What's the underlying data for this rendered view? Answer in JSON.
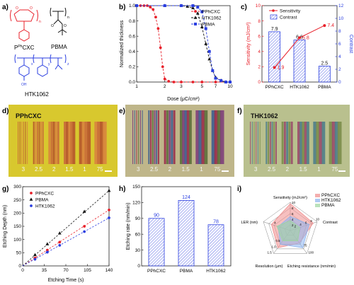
{
  "panels": {
    "a": {
      "label": "a)",
      "molecules": [
        "P^PhCXC",
        "PBMA",
        "HTK1062"
      ],
      "mol_text": {
        "o": "O",
        "oh": "OH",
        "n": "n",
        "x": "x",
        "y": "y",
        "z": "z",
        "pph": "P",
        "pph_sup": "Ph",
        "pph_rest": "CXC"
      }
    },
    "b": {
      "label": "b)",
      "chart_data": {
        "type": "line",
        "xlabel": "Dose (μC/cm²)",
        "ylabel": "Normalized thickness",
        "xscale": "log",
        "xlim": [
          1,
          10
        ],
        "ylim": [
          0.0,
          1.0
        ],
        "xticks": [
          "1",
          "2",
          "3",
          "5",
          "7",
          "10"
        ],
        "yticks": [
          "0.0",
          "0.2",
          "0.4",
          "0.6",
          "0.8",
          "1.0"
        ],
        "legend": "top-right",
        "series": [
          {
            "name": "PPhCXC",
            "color": "#e8202a",
            "marker": "circle",
            "x": [
              1.0,
              1.1,
              1.2,
              1.3,
              1.4,
              1.5,
              1.6,
              1.7,
              1.8,
              1.9,
              2.0,
              2.2,
              2.5,
              3.0,
              4.0,
              5.0,
              7.0,
              10.0
            ],
            "y": [
              1.0,
              1.0,
              1.0,
              1.0,
              0.98,
              0.95,
              0.85,
              0.7,
              0.45,
              0.2,
              0.04,
              0.01,
              0.0,
              0.0,
              0.0,
              0.0,
              0.0,
              0.0
            ]
          },
          {
            "name": "HTK1062",
            "color": "#111111",
            "marker": "triangle",
            "x": [
              1.0,
              2.0,
              3.0,
              3.5,
              4.0,
              4.5,
              5.0,
              5.5,
              6.0,
              6.5,
              7.0,
              8.0,
              9.0,
              10.0
            ],
            "y": [
              1.0,
              1.0,
              1.0,
              0.99,
              0.97,
              0.9,
              0.72,
              0.5,
              0.3,
              0.15,
              0.06,
              0.02,
              0.0,
              0.0
            ]
          },
          {
            "name": "PBMA",
            "color": "#2a3ee0",
            "marker": "square",
            "x": [
              1.0,
              2.0,
              3.0,
              4.0,
              4.5,
              5.0,
              5.5,
              6.0,
              6.5,
              7.0,
              8.0,
              9.0,
              10.0
            ],
            "y": [
              1.0,
              1.0,
              1.0,
              1.0,
              0.98,
              0.92,
              0.7,
              0.4,
              0.15,
              0.05,
              0.02,
              0.0,
              0.0
            ]
          }
        ]
      }
    },
    "c": {
      "label": "c)",
      "chart_data": {
        "type": "bar",
        "categories": [
          "PPhCXC",
          "HTK1062",
          "PBMA"
        ],
        "ylabel_left": "Sensitivity (mJ/cm²)",
        "ylabel_right": "Contrast",
        "ylim_left": [
          0,
          10
        ],
        "ylim_right": [
          0,
          12
        ],
        "yticks_left": [
          "0",
          "2",
          "4",
          "6",
          "8",
          "10"
        ],
        "yticks_right": [
          "0",
          "2",
          "4",
          "6",
          "8",
          "10",
          "12"
        ],
        "series": [
          {
            "name": "Sensitivity",
            "type": "line",
            "axis": "left",
            "color": "#e8202a",
            "values": [
              1.9,
              5.8,
              7.4
            ]
          },
          {
            "name": "Contrast",
            "type": "bar",
            "axis": "right",
            "color": "#2a3ee0",
            "values": [
              7.9,
              6.6,
              2.5
            ]
          }
        ],
        "value_labels_sens": [
          "1.9",
          "5.8",
          "7.4"
        ],
        "value_labels_contrast": [
          "7.9",
          "6.6",
          "2.5"
        ]
      }
    },
    "d": {
      "label": "d)",
      "title": "PPhCXC",
      "dose_labels": [
        "3",
        "2.5",
        "2",
        "1.5",
        "1",
        "75"
      ]
    },
    "e": {
      "label": "e)",
      "dose_labels": [
        "3",
        "2.5",
        "2",
        "1.5",
        "1",
        "75"
      ]
    },
    "f": {
      "label": "f)",
      "title": "THK1062",
      "dose_labels": [
        "3",
        "2.5",
        "2",
        "1.5",
        "1",
        "75"
      ]
    },
    "g": {
      "label": "g)",
      "chart_data": {
        "type": "scatter",
        "xlabel": "Etching Time (s)",
        "ylabel": "Etching Depth (nm)",
        "xlim": [
          0,
          140
        ],
        "ylim": [
          0,
          300
        ],
        "xticks": [
          "0",
          "35",
          "70",
          "105",
          "140"
        ],
        "yticks": [
          "0",
          "50",
          "100",
          "150",
          "200",
          "250",
          "300"
        ],
        "legend": "top-left",
        "series": [
          {
            "name": "PPhCXC",
            "color": "#e8202a",
            "marker": "circle",
            "x": [
              20,
              40,
              60,
              100,
              140
            ],
            "y": [
              30,
              60,
              90,
              150,
              212
            ]
          },
          {
            "name": "PBMA",
            "color": "#111111",
            "marker": "triangle",
            "x": [
              20,
              40,
              60,
              100,
              140
            ],
            "y": [
              42,
              83,
              124,
              206,
              285
            ]
          },
          {
            "name": "HTK1062",
            "color": "#2a3ee0",
            "marker": "circle",
            "x": [
              20,
              40,
              60,
              100,
              140
            ],
            "y": [
              25,
              52,
              78,
              130,
              182
            ]
          }
        ]
      }
    },
    "h": {
      "label": "h)",
      "chart_data": {
        "type": "bar",
        "categories": [
          "PPhCXC",
          "PBMA",
          "HTK1062"
        ],
        "values": [
          90,
          124,
          78
        ],
        "value_labels": [
          "90",
          "124",
          "78"
        ],
        "ylabel": "Etching rate (nm/min)",
        "ylim": [
          0,
          150
        ],
        "yticks": [
          "0",
          "30",
          "60",
          "90",
          "120",
          "150"
        ],
        "color": "#2a3ee0"
      }
    },
    "i": {
      "label": "i)",
      "chart_data": {
        "type": "radar",
        "axes": [
          "Sensitivity (mJ/cm²)",
          "Contrast",
          "Etching resistance (nm/min)",
          "Resolution (μm)",
          "LER (nm)"
        ],
        "legend": "top-right",
        "series": [
          {
            "name": "PPhCXC",
            "color": "#f08c8c",
            "values": [
              0.95,
              0.85,
              0.55,
              0.75,
              0.7
            ]
          },
          {
            "name": "HTK1062",
            "color": "#8cb4f0",
            "values": [
              0.5,
              0.7,
              0.75,
              0.6,
              0.45
            ]
          },
          {
            "name": "PBMA",
            "color": "#9cd6a0",
            "values": [
              0.35,
              0.35,
              0.45,
              0.45,
              0.5
            ]
          }
        ],
        "tick_labels": {
          "sensitivity": [
            "10",
            "8",
            "6",
            "4",
            "2"
          ],
          "contrast": [
            "2",
            "4",
            "6",
            "8",
            "10"
          ],
          "etching": [
            "75",
            "100"
          ],
          "resolution": [
            "0.5",
            "1.0",
            "1.5"
          ],
          "ler": [
            "4"
          ]
        }
      }
    }
  }
}
